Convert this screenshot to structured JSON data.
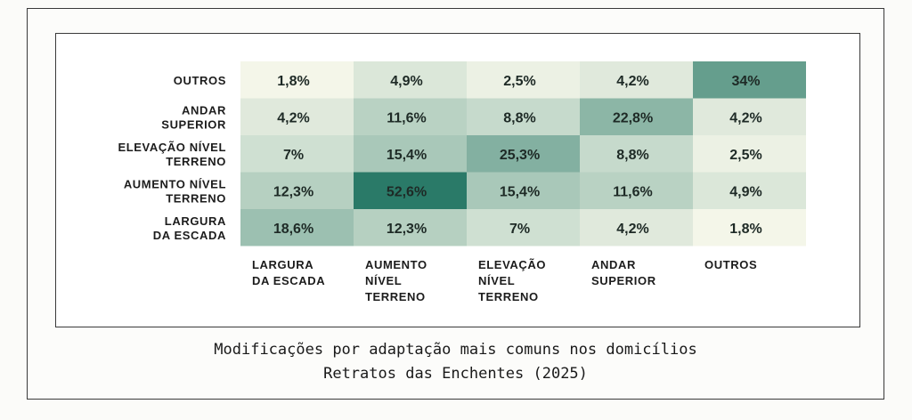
{
  "chart_data": {
    "type": "heatmap",
    "rows": [
      [
        "OUTROS"
      ],
      [
        "ANDAR",
        "SUPERIOR"
      ],
      [
        "ELEVAÇÃO NÍVEL",
        "TERRENO"
      ],
      [
        "AUMENTO NÍVEL",
        "TERRENO"
      ],
      [
        "LARGURA",
        "DA ESCADA"
      ]
    ],
    "columns": [
      [
        "LARGURA",
        "DA ESCADA"
      ],
      [
        "AUMENTO",
        "NÍVEL",
        "TERRENO"
      ],
      [
        "ELEVAÇÃO",
        "NÍVEL",
        "TERRENO"
      ],
      [
        "ANDAR",
        "SUPERIOR"
      ],
      [
        "OUTROS"
      ]
    ],
    "values": [
      [
        1.8,
        4.9,
        2.5,
        4.2,
        34
      ],
      [
        4.2,
        11.6,
        8.8,
        22.8,
        4.2
      ],
      [
        7,
        15.4,
        25.3,
        8.8,
        2.5
      ],
      [
        12.3,
        52.6,
        15.4,
        11.6,
        4.9
      ],
      [
        18.6,
        12.3,
        7,
        4.2,
        1.8
      ]
    ],
    "labels": [
      [
        "1,8%",
        "4,9%",
        "2,5%",
        "4,2%",
        "34%"
      ],
      [
        "4,2%",
        "11,6%",
        "8,8%",
        "22,8%",
        "4,2%"
      ],
      [
        "7%",
        "15,4%",
        "25,3%",
        "8,8%",
        "2,5%"
      ],
      [
        "12,3%",
        "52,6%",
        "15,4%",
        "11,6%",
        "4,9%"
      ],
      [
        "18,6%",
        "12,3%",
        "7%",
        "4,2%",
        "1,8%"
      ]
    ],
    "color_scale": {
      "low": "#f4f6e9",
      "high": "#2a7a68"
    }
  },
  "caption": {
    "line1": "Modificações por adaptação mais comuns nos domicílios",
    "line2": "Retratos das Enchentes (2025)"
  }
}
